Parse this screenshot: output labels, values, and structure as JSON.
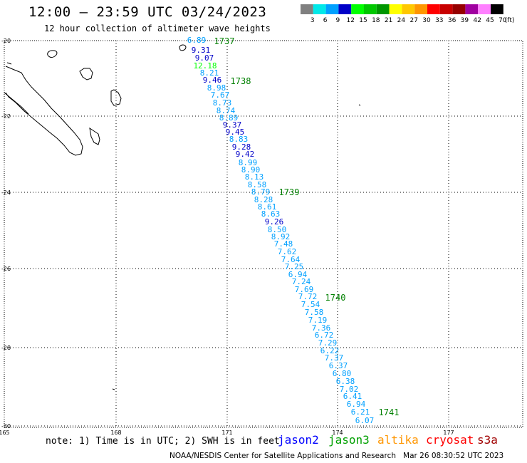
{
  "title": "12:00 – 23:59 UTC 03/24/2023",
  "subtitle": "12 hour collection of altimeter wave heights",
  "legend": {
    "unit": "(ft)",
    "bins": [
      {
        "label": "3",
        "color": "#808080"
      },
      {
        "label": "6",
        "color": "#00e8e8"
      },
      {
        "label": "9",
        "color": "#00a0ff"
      },
      {
        "label": "12",
        "color": "#0000c8"
      },
      {
        "label": "15",
        "color": "#00ff00"
      },
      {
        "label": "18",
        "color": "#00c800"
      },
      {
        "label": "21",
        "color": "#009600"
      },
      {
        "label": "24",
        "color": "#ffff00"
      },
      {
        "label": "27",
        "color": "#ffc800"
      },
      {
        "label": "30",
        "color": "#ff9600"
      },
      {
        "label": "33",
        "color": "#ff0000"
      },
      {
        "label": "36",
        "color": "#c80000"
      },
      {
        "label": "39",
        "color": "#960000"
      },
      {
        "label": "42",
        "color": "#a000a0"
      },
      {
        "label": "45",
        "color": "#ff80ff"
      },
      {
        "label": "70",
        "color": "#000000"
      }
    ]
  },
  "map": {
    "lon_ticks": [
      "165",
      "168",
      "171",
      "174",
      "177"
    ],
    "lat_ticks": [
      "-20",
      "-22",
      "-24",
      "-26",
      "-28",
      "-30"
    ]
  },
  "pass_labels": [
    "1737",
    "1738",
    "1739",
    "1740",
    "1741"
  ],
  "track": [
    {
      "v": "6.89",
      "c": "#00a0ff"
    },
    {
      "v": "9.31",
      "c": "#0000c8"
    },
    {
      "v": "9.07",
      "c": "#0000c8"
    },
    {
      "v": "12.18",
      "c": "#00ff00"
    },
    {
      "v": "8.21",
      "c": "#00a0ff"
    },
    {
      "v": "9.46",
      "c": "#0000c8"
    },
    {
      "v": "8.98",
      "c": "#00a0ff"
    },
    {
      "v": "7.67",
      "c": "#00a0ff"
    },
    {
      "v": "8.73",
      "c": "#00a0ff"
    },
    {
      "v": "8.74",
      "c": "#00a0ff"
    },
    {
      "v": "8.89",
      "c": "#00a0ff"
    },
    {
      "v": "9.37",
      "c": "#0000c8"
    },
    {
      "v": "9.45",
      "c": "#0000c8"
    },
    {
      "v": "8.83",
      "c": "#00a0ff"
    },
    {
      "v": "9.28",
      "c": "#0000c8"
    },
    {
      "v": "9.42",
      "c": "#0000c8"
    },
    {
      "v": "8.99",
      "c": "#00a0ff"
    },
    {
      "v": "8.90",
      "c": "#00a0ff"
    },
    {
      "v": "8.13",
      "c": "#00a0ff"
    },
    {
      "v": "8.58",
      "c": "#00a0ff"
    },
    {
      "v": "8.79",
      "c": "#00a0ff"
    },
    {
      "v": "8.28",
      "c": "#00a0ff"
    },
    {
      "v": "8.61",
      "c": "#00a0ff"
    },
    {
      "v": "8.63",
      "c": "#00a0ff"
    },
    {
      "v": "9.26",
      "c": "#0000c8"
    },
    {
      "v": "8.50",
      "c": "#00a0ff"
    },
    {
      "v": "8.92",
      "c": "#00a0ff"
    },
    {
      "v": "7.48",
      "c": "#00a0ff"
    },
    {
      "v": "7.62",
      "c": "#00a0ff"
    },
    {
      "v": "7.64",
      "c": "#00a0ff"
    },
    {
      "v": "7.25",
      "c": "#00a0ff"
    },
    {
      "v": "6.94",
      "c": "#00a0ff"
    },
    {
      "v": "7.24",
      "c": "#00a0ff"
    },
    {
      "v": "7.69",
      "c": "#00a0ff"
    },
    {
      "v": "7.72",
      "c": "#00a0ff"
    },
    {
      "v": "7.54",
      "c": "#00a0ff"
    },
    {
      "v": "7.58",
      "c": "#00a0ff"
    },
    {
      "v": "7.19",
      "c": "#00a0ff"
    },
    {
      "v": "7.36",
      "c": "#00a0ff"
    },
    {
      "v": "6.72",
      "c": "#00a0ff"
    },
    {
      "v": "7.29",
      "c": "#00a0ff"
    },
    {
      "v": "6.22",
      "c": "#00a0ff"
    },
    {
      "v": "7.37",
      "c": "#00a0ff"
    },
    {
      "v": "6.37",
      "c": "#00a0ff"
    },
    {
      "v": "6.80",
      "c": "#00a0ff"
    },
    {
      "v": "6.38",
      "c": "#00a0ff"
    },
    {
      "v": "7.02",
      "c": "#00a0ff"
    },
    {
      "v": "6.41",
      "c": "#00a0ff"
    },
    {
      "v": "6.94",
      "c": "#00a0ff"
    },
    {
      "v": "6.21",
      "c": "#00a0ff"
    },
    {
      "v": "6.07",
      "c": "#00a0ff"
    }
  ],
  "note": "note: 1) Time is in UTC; 2) SWH is in feet",
  "satellites": [
    {
      "name": "jason2",
      "color": "#0000ff"
    },
    {
      "name": "jason3",
      "color": "#00a000"
    },
    {
      "name": "altika",
      "color": "#ff9600"
    },
    {
      "name": "cryosat",
      "color": "#ff0000"
    },
    {
      "name": "s3a",
      "color": "#a00000"
    }
  ],
  "credit": "NOAA/NESDIS Center for Satellite Applications and Research   Mar 26 08:30:52 UTC 2023"
}
